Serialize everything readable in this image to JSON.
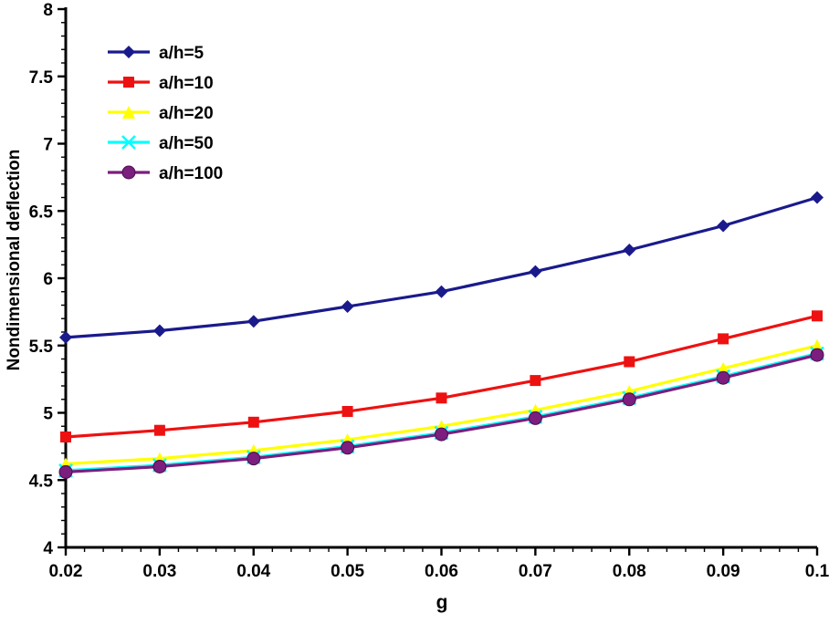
{
  "chart_data": {
    "type": "line",
    "title": "",
    "xlabel": "g",
    "ylabel": "Nondimensional deflection",
    "xlim": [
      0.02,
      0.1
    ],
    "ylim": [
      4,
      8
    ],
    "grid": false,
    "legend_position": "top-left-inside",
    "x": [
      0.02,
      0.03,
      0.04,
      0.05,
      0.06,
      0.07,
      0.08,
      0.09,
      0.1
    ],
    "xticks": [
      0.02,
      0.03,
      0.04,
      0.05,
      0.06,
      0.07,
      0.08,
      0.09,
      0.1
    ],
    "xtick_labels": [
      "0.02",
      "0.03",
      "0.04",
      "0.05",
      "0.06",
      "0.07",
      "0.08",
      "0.09",
      "0.1"
    ],
    "yticks": [
      4,
      4.5,
      5,
      5.5,
      6,
      6.5,
      7,
      7.5,
      8
    ],
    "ytick_labels": [
      "4",
      "4.5",
      "5",
      "5.5",
      "6",
      "6.5",
      "7",
      "7.5",
      "8"
    ],
    "x_minor_step": 0.002,
    "y_minor_step": 0.1,
    "axis_color": "#000000",
    "series": [
      {
        "name": "a/h=5",
        "color": "#1a1a8c",
        "marker": "diamond",
        "values": [
          5.56,
          5.61,
          5.68,
          5.79,
          5.9,
          6.05,
          6.21,
          6.39,
          6.6
        ]
      },
      {
        "name": "a/h=10",
        "color": "#ee1111",
        "marker": "square",
        "values": [
          4.82,
          4.87,
          4.93,
          5.01,
          5.11,
          5.24,
          5.38,
          5.55,
          5.72
        ]
      },
      {
        "name": "a/h=20",
        "color": "#ffff00",
        "marker": "triangle",
        "values": [
          4.62,
          4.66,
          4.72,
          4.8,
          4.9,
          5.02,
          5.16,
          5.33,
          5.5
        ]
      },
      {
        "name": "a/h=50",
        "color": "#00ffff",
        "marker": "x",
        "values": [
          4.57,
          4.61,
          4.67,
          4.75,
          4.85,
          4.97,
          5.11,
          5.27,
          5.44
        ]
      },
      {
        "name": "a/h=100",
        "color": "#7b1e7e",
        "marker": "circle",
        "values": [
          4.56,
          4.6,
          4.66,
          4.74,
          4.84,
          4.96,
          5.1,
          5.26,
          5.43
        ]
      }
    ]
  }
}
